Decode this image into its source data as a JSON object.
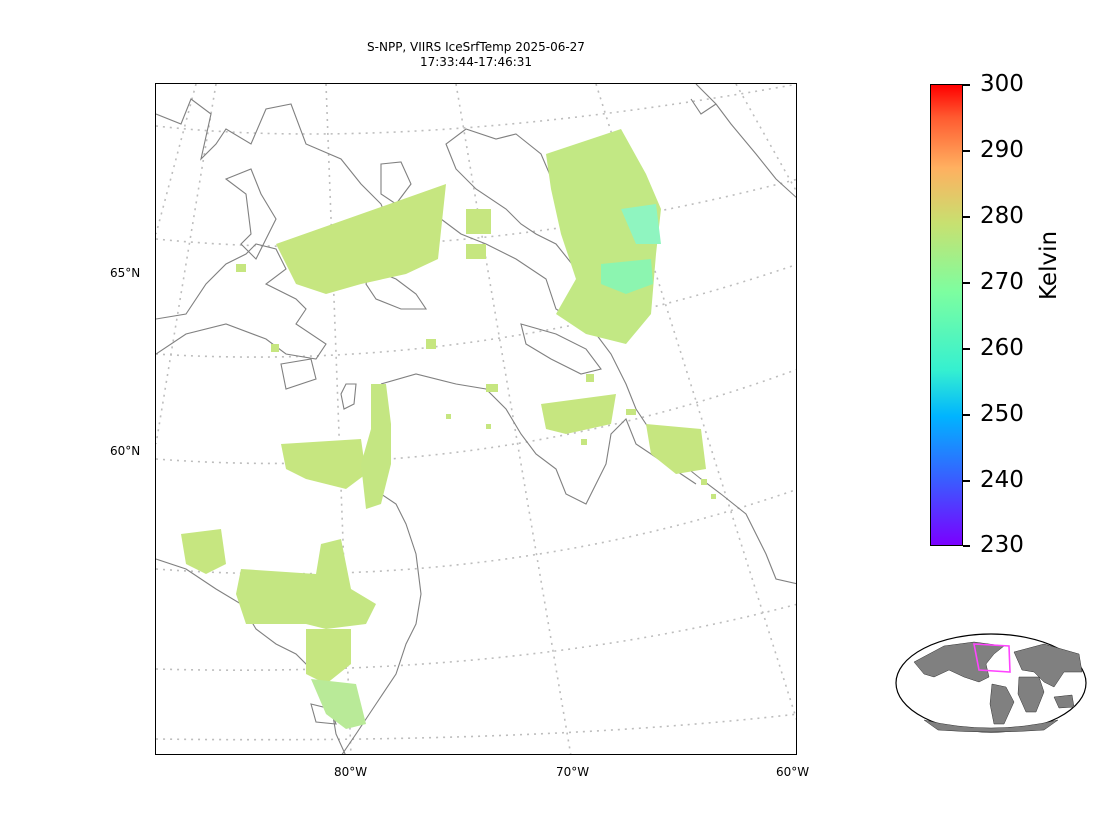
{
  "title": {
    "line1": "S-NPP, VIIRS IceSrfTemp 2025-06-27",
    "line2": "17:33:44-17:46:31"
  },
  "map": {
    "lat_labels": [
      "65°N",
      "60°N"
    ],
    "lon_labels": [
      "80°W",
      "70°W",
      "60°W"
    ],
    "land_outline_color": "#808080",
    "graticule_color": "#bbbbbb"
  },
  "colorbar": {
    "unit": "Kelvin",
    "min": 230,
    "max": 300,
    "ticks": [
      "300",
      "290",
      "280",
      "270",
      "260",
      "250",
      "240",
      "230"
    ],
    "colormap": "rainbow"
  },
  "inset": {
    "land_color": "#808080",
    "extent_box_color": "#ff44ff"
  }
}
